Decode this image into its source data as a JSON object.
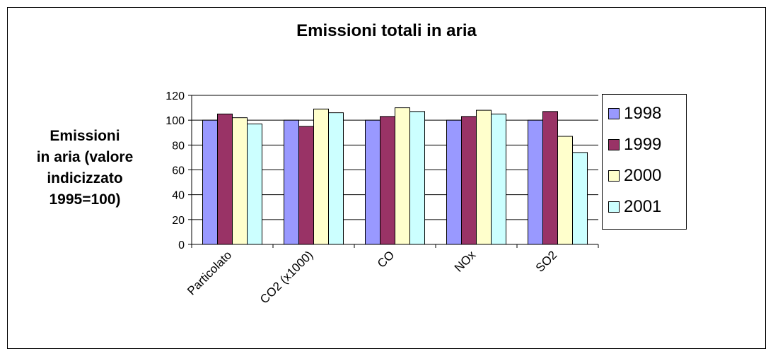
{
  "chart_data": {
    "type": "bar",
    "title": "Emissioni totali in aria",
    "ylabel": "Emissioni\nin aria (valore\nindicizzato\n1995=100)",
    "xlabel": "",
    "categories": [
      "Particolato",
      "CO2 (x1000)",
      "CO",
      "NOx",
      "SO2"
    ],
    "series": [
      {
        "name": "1998",
        "color": "#9999ff",
        "values": [
          100,
          100,
          100,
          100,
          100
        ]
      },
      {
        "name": "1999",
        "color": "#993366",
        "values": [
          105,
          95,
          103,
          103,
          107
        ]
      },
      {
        "name": "2000",
        "color": "#ffffcc",
        "values": [
          102,
          109,
          110,
          108,
          87
        ]
      },
      {
        "name": "2001",
        "color": "#ccffff",
        "values": [
          97,
          106,
          107,
          105,
          74
        ]
      }
    ],
    "ylim": [
      0,
      120
    ],
    "yticks": [
      "0",
      "20",
      "40",
      "60",
      "80",
      "100",
      "120"
    ],
    "grid": true,
    "legend_position": "right"
  }
}
